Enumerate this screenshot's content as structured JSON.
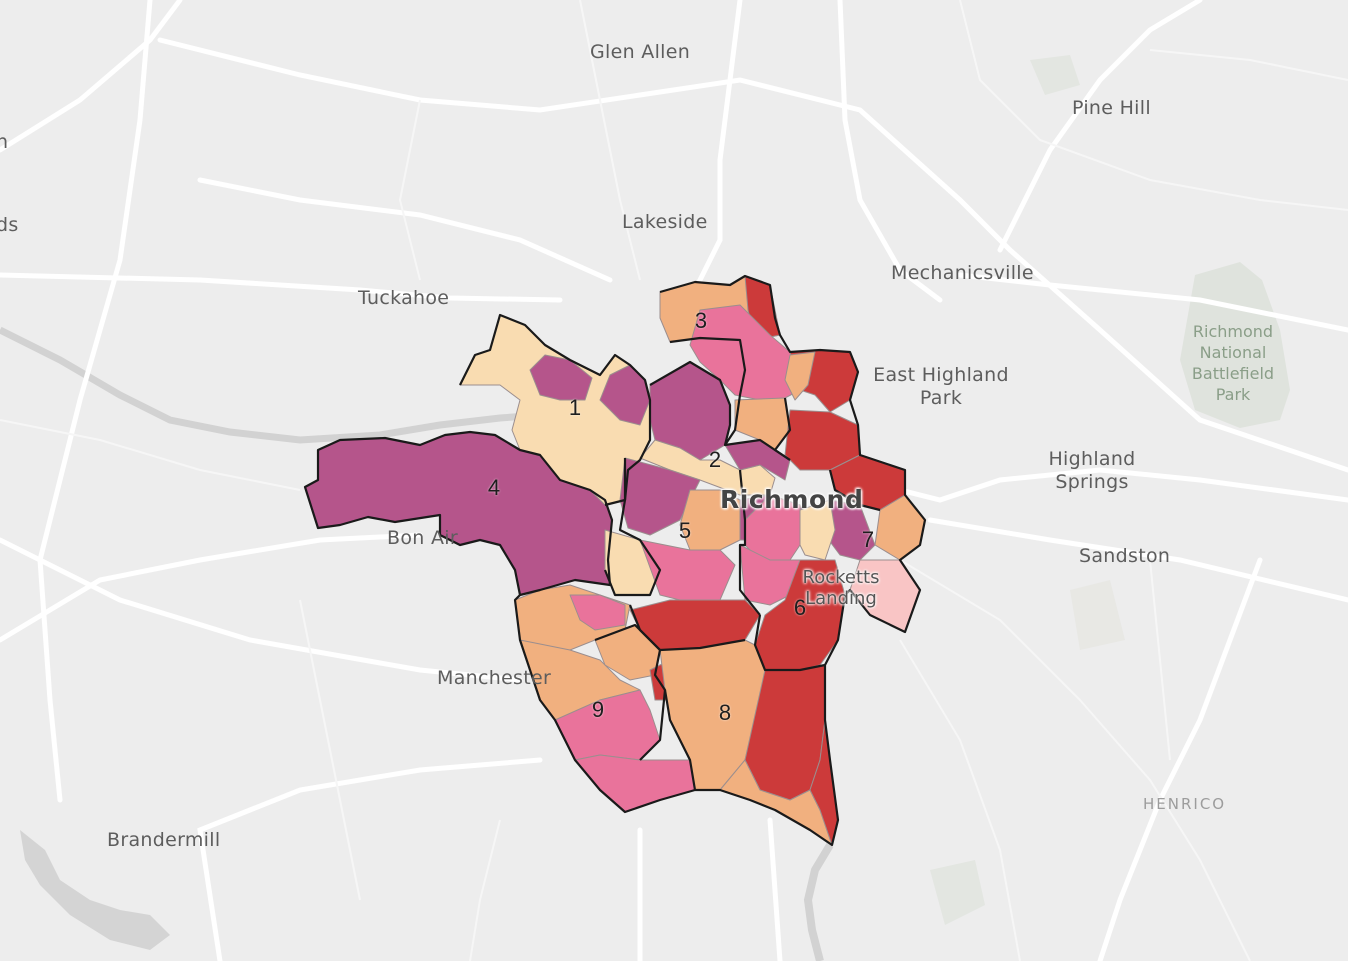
{
  "places": {
    "glen_allen": "Glen Allen",
    "pine_hill": "Pine Hill",
    "lakeside": "Lakeside",
    "mechanicsville": "Mechanicsville",
    "tuckahoe": "Tuckahoe",
    "east_highland_park_1": "East Highland",
    "east_highland_park_2": "Park",
    "highland_springs_1": "Highland",
    "highland_springs_2": "Springs",
    "sandston": "Sandston",
    "bon_air": "Bon Air",
    "manchester": "Manchester",
    "brandermill": "Brandermill",
    "edge_n": "n",
    "edge_ds": "ds"
  },
  "park": {
    "line1": "Richmond",
    "line2": "National",
    "line3": "Battlefield",
    "line4": "Park"
  },
  "county": "HENRICO",
  "city": "Richmond",
  "rocketts": {
    "line1": "Rocketts",
    "line2": "Landing"
  },
  "districts": [
    "1",
    "2",
    "3",
    "4",
    "5",
    "6",
    "7",
    "8",
    "9"
  ],
  "palette": {
    "lightest": "#f9dcb1",
    "light": "#f1b07f",
    "pink": "#e9739b",
    "purple": "#b5558b",
    "red": "#cc3a3a"
  }
}
